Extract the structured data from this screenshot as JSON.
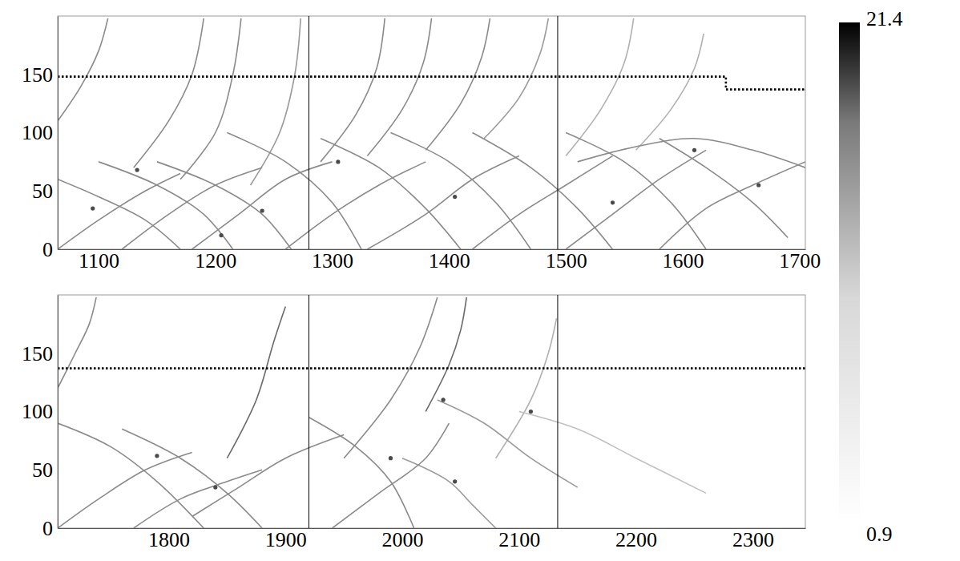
{
  "chart_data": [
    {
      "type": "line",
      "xlim": [
        1065,
        1705
      ],
      "ylim": [
        0,
        200
      ],
      "xticks": [
        1100,
        1200,
        1300,
        1400,
        1500,
        1600,
        1700
      ],
      "yticks": [
        0,
        50,
        100,
        150
      ],
      "vlines": [
        1280,
        1493
      ],
      "colorbar": {
        "range": [
          0.9,
          21.4
        ],
        "ticks": [
          0.9,
          21.4
        ]
      },
      "series": [
        {
          "color": "#8a8a8a",
          "line_style": "solid",
          "x": [
            1065,
            1085,
            1100,
            1108
          ],
          "values": [
            110,
            140,
            170,
            198
          ]
        },
        {
          "color": "#8a8a8a",
          "line_style": "solid",
          "x": [
            1130,
            1160,
            1180,
            1190
          ],
          "values": [
            70,
            110,
            150,
            198
          ]
        },
        {
          "color": "#8a8a8a",
          "line_style": "solid",
          "x": [
            1170,
            1200,
            1215,
            1222
          ],
          "values": [
            60,
            100,
            150,
            198
          ]
        },
        {
          "color": "#9a9a9a",
          "line_style": "solid",
          "x": [
            1230,
            1255,
            1268,
            1273
          ],
          "values": [
            55,
            100,
            150,
            198
          ]
        },
        {
          "color": "#8a8a8a",
          "line_style": "solid",
          "x": [
            1290,
            1320,
            1338,
            1345
          ],
          "values": [
            75,
            115,
            155,
            198
          ]
        },
        {
          "color": "#8a8a8a",
          "line_style": "solid",
          "x": [
            1330,
            1360,
            1378,
            1385
          ],
          "values": [
            80,
            120,
            160,
            198
          ]
        },
        {
          "color": "#8a8a8a",
          "line_style": "solid",
          "x": [
            1380,
            1410,
            1428,
            1435
          ],
          "values": [
            85,
            125,
            165,
            198
          ]
        },
        {
          "color": "#9a9a9a",
          "line_style": "solid",
          "x": [
            1430,
            1460,
            1478,
            1485
          ],
          "values": [
            95,
            130,
            168,
            198
          ]
        },
        {
          "color": "#b0b0b0",
          "line_style": "solid",
          "x": [
            1500,
            1530,
            1550,
            1558
          ],
          "values": [
            80,
            120,
            160,
            198
          ]
        },
        {
          "color": "#b0b0b0",
          "line_style": "solid",
          "x": [
            1560,
            1590,
            1610,
            1618
          ],
          "values": [
            85,
            120,
            155,
            185
          ]
        },
        {
          "color": "#8a8a8a",
          "line_style": "solid",
          "x": [
            1065,
            1100,
            1140,
            1170
          ],
          "values": [
            60,
            45,
            25,
            0
          ]
        },
        {
          "color": "#8a8a8a",
          "line_style": "solid",
          "x": [
            1100,
            1150,
            1190,
            1215
          ],
          "values": [
            75,
            55,
            30,
            0
          ]
        },
        {
          "color": "#8a8a8a",
          "line_style": "solid",
          "x": [
            1150,
            1200,
            1240,
            1265
          ],
          "values": [
            75,
            55,
            30,
            0
          ]
        },
        {
          "color": "#8a8a8a",
          "line_style": "solid",
          "x": [
            1210,
            1260,
            1300,
            1325
          ],
          "values": [
            100,
            75,
            40,
            0
          ]
        },
        {
          "color": "#8a8a8a",
          "line_style": "solid",
          "x": [
            1290,
            1340,
            1380,
            1410
          ],
          "values": [
            95,
            70,
            35,
            0
          ]
        },
        {
          "color": "#8a8a8a",
          "line_style": "solid",
          "x": [
            1350,
            1400,
            1440,
            1470
          ],
          "values": [
            100,
            75,
            40,
            0
          ]
        },
        {
          "color": "#8a8a8a",
          "line_style": "solid",
          "x": [
            1420,
            1470,
            1510,
            1540
          ],
          "values": [
            100,
            70,
            35,
            0
          ]
        },
        {
          "color": "#8a8a8a",
          "line_style": "solid",
          "x": [
            1500,
            1550,
            1590,
            1620
          ],
          "values": [
            100,
            75,
            40,
            0
          ]
        },
        {
          "color": "#8a8a8a",
          "line_style": "solid",
          "x": [
            1580,
            1620,
            1660,
            1690
          ],
          "values": [
            95,
            70,
            40,
            10
          ]
        },
        {
          "color": "#8a8a8a",
          "line_style": "solid",
          "x": [
            1065,
            1100,
            1140,
            1170
          ],
          "values": [
            0,
            25,
            50,
            65
          ]
        },
        {
          "color": "#8a8a8a",
          "line_style": "solid",
          "x": [
            1120,
            1160,
            1200,
            1240
          ],
          "values": [
            0,
            30,
            55,
            70
          ]
        },
        {
          "color": "#8a8a8a",
          "line_style": "solid",
          "x": [
            1180,
            1220,
            1260,
            1300
          ],
          "values": [
            0,
            30,
            60,
            75
          ]
        },
        {
          "color": "#8a8a8a",
          "line_style": "solid",
          "x": [
            1260,
            1300,
            1340,
            1380
          ],
          "values": [
            0,
            30,
            55,
            75
          ]
        },
        {
          "color": "#8a8a8a",
          "line_style": "solid",
          "x": [
            1330,
            1380,
            1420,
            1460
          ],
          "values": [
            0,
            30,
            60,
            80
          ]
        },
        {
          "color": "#8a8a8a",
          "line_style": "solid",
          "x": [
            1420,
            1460,
            1500,
            1540
          ],
          "values": [
            0,
            30,
            55,
            80
          ]
        },
        {
          "color": "#8a8a8a",
          "line_style": "solid",
          "x": [
            1500,
            1540,
            1580,
            1620
          ],
          "values": [
            0,
            30,
            60,
            85
          ]
        },
        {
          "color": "#8a8a8a",
          "line_style": "solid",
          "x": [
            1580,
            1620,
            1660,
            1705
          ],
          "values": [
            0,
            35,
            55,
            75
          ]
        },
        {
          "color": "#8a8a8a",
          "line_style": "solid",
          "x": [
            1510,
            1560,
            1610,
            1660,
            1705
          ],
          "values": [
            75,
            88,
            95,
            85,
            70
          ]
        },
        {
          "color": "#000000",
          "line_style": "dotted",
          "x": [
            1065,
            1637,
            1637,
            1705
          ],
          "values": [
            148,
            148,
            137,
            137
          ]
        },
        {
          "type": "scatter",
          "marker": "circle",
          "color": "#4a4a4a",
          "x": [
            1095,
            1133,
            1240,
            1405,
            1540,
            1610,
            1665,
            1305,
            1205
          ],
          "values": [
            35,
            68,
            33,
            45,
            40,
            85,
            55,
            75,
            12
          ]
        }
      ]
    },
    {
      "type": "line",
      "xlim": [
        1705,
        2345
      ],
      "ylim": [
        0,
        200
      ],
      "xticks": [
        1800,
        1900,
        2000,
        2100,
        2200,
        2300
      ],
      "yticks": [
        0,
        50,
        100,
        150
      ],
      "vlines": [
        1920,
        2133
      ],
      "series": [
        {
          "color": "#8a8a8a",
          "line_style": "solid",
          "x": [
            1705,
            1720,
            1732,
            1738
          ],
          "values": [
            120,
            150,
            175,
            198
          ]
        },
        {
          "color": "#6a6a6a",
          "line_style": "solid",
          "x": [
            1850,
            1875,
            1890,
            1900
          ],
          "values": [
            60,
            110,
            160,
            190
          ]
        },
        {
          "color": "#8a8a8a",
          "line_style": "solid",
          "x": [
            1950,
            1990,
            2015,
            2030
          ],
          "values": [
            60,
            110,
            155,
            198
          ]
        },
        {
          "color": "#6a6a6a",
          "line_style": "solid",
          "x": [
            2020,
            2040,
            2050,
            2055
          ],
          "values": [
            100,
            140,
            170,
            198
          ]
        },
        {
          "color": "#b0b0b0",
          "line_style": "solid",
          "x": [
            2080,
            2110,
            2125,
            2132
          ],
          "values": [
            60,
            110,
            150,
            180
          ]
        },
        {
          "color": "#8a8a8a",
          "line_style": "solid",
          "x": [
            1705,
            1750,
            1790,
            1830
          ],
          "values": [
            90,
            70,
            40,
            0
          ]
        },
        {
          "color": "#8a8a8a",
          "line_style": "solid",
          "x": [
            1760,
            1810,
            1850,
            1880
          ],
          "values": [
            85,
            60,
            30,
            0
          ]
        },
        {
          "color": "#8a8a8a",
          "line_style": "solid",
          "x": [
            1920,
            1960,
            1990,
            2010
          ],
          "values": [
            95,
            70,
            40,
            0
          ]
        },
        {
          "color": "#9a9a9a",
          "line_style": "solid",
          "x": [
            2030,
            2070,
            2110,
            2150
          ],
          "values": [
            110,
            90,
            60,
            35
          ]
        },
        {
          "color": "#c0c0c0",
          "line_style": "solid",
          "x": [
            2100,
            2150,
            2200,
            2260
          ],
          "values": [
            100,
            85,
            60,
            30
          ]
        },
        {
          "color": "#9a9a9a",
          "line_style": "solid",
          "x": [
            2000,
            2040,
            2060,
            2080
          ],
          "values": [
            60,
            40,
            20,
            0
          ]
        },
        {
          "color": "#8a8a8a",
          "line_style": "solid",
          "x": [
            1705,
            1740,
            1780,
            1820
          ],
          "values": [
            0,
            25,
            50,
            65
          ]
        },
        {
          "color": "#8a8a8a",
          "line_style": "solid",
          "x": [
            1770,
            1810,
            1850,
            1880
          ],
          "values": [
            0,
            25,
            40,
            50
          ]
        },
        {
          "color": "#8a8a8a",
          "line_style": "solid",
          "x": [
            1940,
            1980,
            2020,
            2040
          ],
          "values": [
            0,
            30,
            60,
            90
          ]
        },
        {
          "color": "#8a8a8a",
          "line_style": "solid",
          "x": [
            1820,
            1860,
            1900,
            1950
          ],
          "values": [
            10,
            35,
            60,
            80
          ]
        },
        {
          "color": "#000000",
          "line_style": "dotted",
          "x": [
            1705,
            2345
          ],
          "values": [
            137,
            137
          ]
        },
        {
          "type": "scatter",
          "marker": "circle",
          "color": "#4a4a4a",
          "x": [
            1840,
            1790,
            2035,
            2110,
            1990,
            2045
          ],
          "values": [
            35,
            62,
            110,
            100,
            60,
            40
          ]
        }
      ]
    }
  ]
}
